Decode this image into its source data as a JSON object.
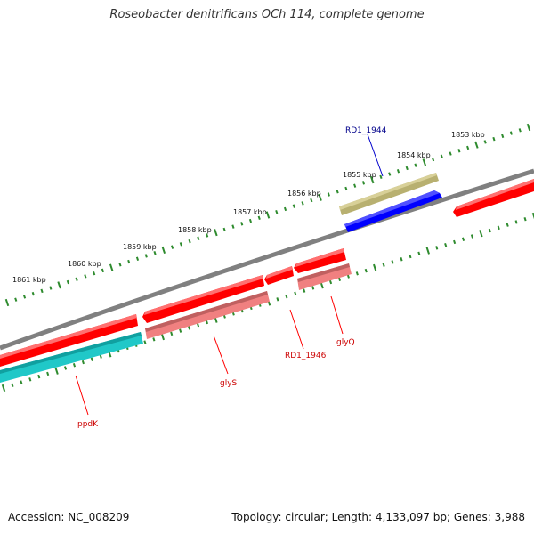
{
  "title": "Roseobacter denitrificans OCh 114, complete genome",
  "footer": {
    "accession": "Accession: NC_008209",
    "summary": "Topology: circular; Length: 4,133,097 bp; Genes: 3,988"
  },
  "colors": {
    "backbone": "#808080",
    "ticks": "#2e8b2e",
    "red_gene": "#ff0000",
    "pink_gene": "#f08080",
    "blue_gene": "#0000ff",
    "olive_gene": "#b8b070",
    "cyan_gene": "#20c8c8",
    "blue_label": "#00008b",
    "red_label": "#cc0000"
  },
  "scale_labels": [
    "1861 kbp",
    "1860 kbp",
    "1859 kbp",
    "1858 kbp",
    "1857 kbp",
    "1856 kbp",
    "1855 kbp",
    "1854 kbp",
    "1853 kbp"
  ],
  "gene_labels": {
    "rd1_1944": "RD1_1944",
    "ppdk": "ppdK",
    "glys": "glyS",
    "rd1_1946": "RD1_1946",
    "glyq": "glyQ"
  }
}
